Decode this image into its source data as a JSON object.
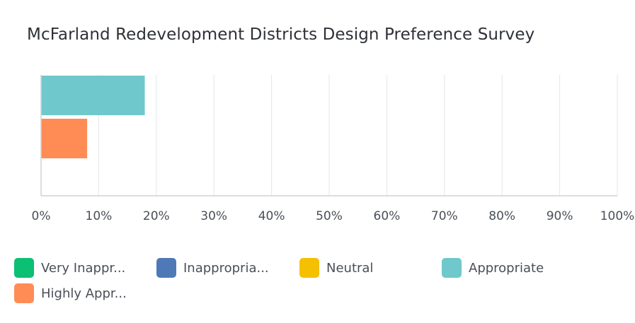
{
  "chart_data": {
    "type": "bar",
    "orientation": "horizontal",
    "title": "McFarland Redevelopment Districts Design Preference Survey",
    "xlabel": "",
    "ylabel": "",
    "xlim": [
      0,
      100
    ],
    "x_ticks": [
      "0%",
      "10%",
      "20%",
      "30%",
      "40%",
      "50%",
      "60%",
      "70%",
      "80%",
      "90%",
      "100%"
    ],
    "grid": true,
    "legend_position": "bottom",
    "series": [
      {
        "name": "Very Inappr...",
        "color": "#0bbf73",
        "values": [
          0
        ]
      },
      {
        "name": "Inappropria...",
        "color": "#4f79b6",
        "values": [
          0
        ]
      },
      {
        "name": "Neutral",
        "color": "#f5c000",
        "values": [
          0
        ]
      },
      {
        "name": "Appropriate",
        "color": "#6ec8cc",
        "values": [
          18
        ]
      },
      {
        "name": "Highly Appr...",
        "color": "#ff8c55",
        "values": [
          8
        ]
      }
    ]
  }
}
